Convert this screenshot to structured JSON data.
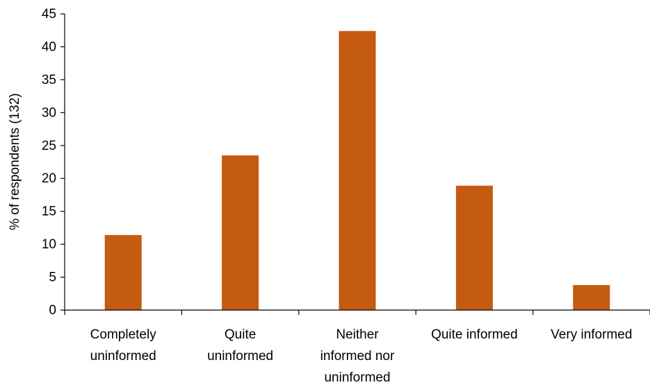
{
  "chart_data": {
    "type": "bar",
    "categories": [
      [
        "Completely",
        "uninformed"
      ],
      [
        "Quite",
        "uninformed"
      ],
      [
        "Neither",
        "informed nor",
        "uninformed"
      ],
      [
        "Quite informed"
      ],
      [
        "Very informed"
      ]
    ],
    "values": [
      11.4,
      23.5,
      42.4,
      18.9,
      3.8
    ],
    "ylabel": "% of respondents (132)",
    "ylim": [
      0,
      45
    ],
    "yticks": [
      0,
      5,
      10,
      15,
      20,
      25,
      30,
      35,
      40,
      45
    ],
    "bar_color": "#c55a11",
    "grid": false
  }
}
